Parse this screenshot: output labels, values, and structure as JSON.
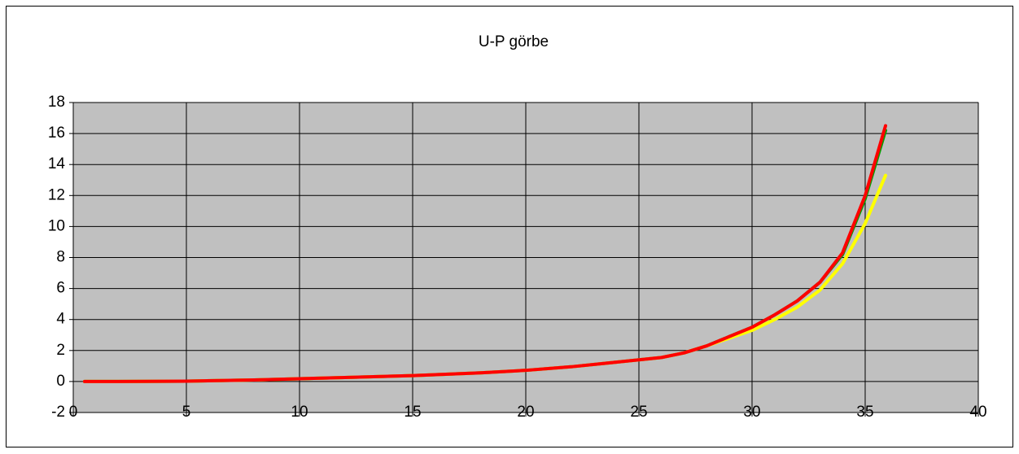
{
  "chart_data": {
    "type": "line",
    "title": "U-P görbe",
    "x": [
      0.5,
      2,
      5,
      8,
      10,
      12,
      15,
      18,
      20,
      22,
      24,
      26,
      27,
      28,
      29,
      30,
      31,
      32,
      33,
      34,
      35,
      35.9
    ],
    "series": [
      {
        "color": "#00a000",
        "values": [
          0,
          0,
          0.02,
          0.1,
          0.18,
          0.26,
          0.38,
          0.56,
          0.72,
          0.95,
          1.25,
          1.55,
          1.85,
          2.3,
          2.9,
          3.5,
          4.3,
          5.2,
          6.4,
          8.2,
          11.8,
          16.2
        ]
      },
      {
        "color": "#ffff00",
        "values": [
          0,
          0,
          0.02,
          0.1,
          0.18,
          0.26,
          0.38,
          0.56,
          0.72,
          0.95,
          1.25,
          1.55,
          1.85,
          2.3,
          2.8,
          3.3,
          4.0,
          4.8,
          5.9,
          7.6,
          10.2,
          13.3
        ]
      },
      {
        "color": "#ff0000",
        "values": [
          0,
          0,
          0.02,
          0.1,
          0.18,
          0.26,
          0.38,
          0.56,
          0.72,
          0.95,
          1.25,
          1.55,
          1.85,
          2.3,
          2.9,
          3.5,
          4.3,
          5.2,
          6.4,
          8.3,
          12,
          16.5
        ]
      }
    ],
    "xlim": [
      0,
      40
    ],
    "xticks": [
      0,
      5,
      10,
      15,
      20,
      25,
      30,
      35,
      40
    ],
    "ylim": [
      -2,
      18
    ],
    "yticks": [
      -2,
      0,
      2,
      4,
      6,
      8,
      10,
      12,
      14,
      16,
      18
    ],
    "grid": true,
    "plot_background": "#c0c0c0"
  }
}
